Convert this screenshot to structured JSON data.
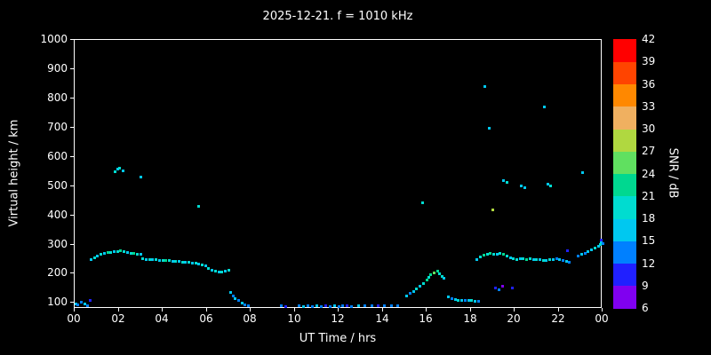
{
  "title": "2025-12-21. f = 1010 kHz",
  "chart_data": {
    "type": "scatter",
    "title": "2025-12-21. f = 1010 kHz",
    "xlabel": "UT Time / hrs",
    "ylabel": "Virtual height / km",
    "xlim": [
      0,
      24
    ],
    "ylim": [
      80,
      1000
    ],
    "grid": false,
    "background": "#000000",
    "axis_color": "#ffffff",
    "x_tick_values": [
      0,
      2,
      4,
      6,
      8,
      10,
      12,
      14,
      16,
      18,
      20,
      22,
      24
    ],
    "x_tick_labels": [
      "00",
      "02",
      "04",
      "06",
      "08",
      "10",
      "12",
      "14",
      "16",
      "18",
      "20",
      "22",
      "00"
    ],
    "y_ticks": [
      100,
      200,
      300,
      400,
      500,
      600,
      700,
      800,
      900,
      1000
    ],
    "colorbar": {
      "label": "SNR / dB",
      "min": 6,
      "max": 42,
      "ticks": [
        6,
        9,
        12,
        15,
        18,
        21,
        24,
        27,
        30,
        33,
        36,
        39,
        42
      ],
      "bands": [
        {
          "from": 6,
          "color": "#8000f0"
        },
        {
          "from": 9,
          "color": "#2020ff"
        },
        {
          "from": 12,
          "color": "#0080ff"
        },
        {
          "from": 15,
          "color": "#00c8f0"
        },
        {
          "from": 18,
          "color": "#00dcd0"
        },
        {
          "from": 21,
          "color": "#00d890"
        },
        {
          "from": 24,
          "color": "#60e060"
        },
        {
          "from": 27,
          "color": "#b0d840"
        },
        {
          "from": 30,
          "color": "#f0b060"
        },
        {
          "from": 33,
          "color": "#ff8800"
        },
        {
          "from": 36,
          "color": "#ff4400"
        },
        {
          "from": 39,
          "color": "#ff0000"
        }
      ]
    },
    "points": [
      [
        0.05,
        98,
        15
      ],
      [
        0.15,
        93,
        12
      ],
      [
        0.3,
        103,
        12
      ],
      [
        0.45,
        96,
        15
      ],
      [
        0.6,
        90,
        12
      ],
      [
        0.7,
        108,
        9
      ],
      [
        0.75,
        248,
        15
      ],
      [
        0.9,
        254,
        18
      ],
      [
        1.05,
        260,
        15
      ],
      [
        1.2,
        266,
        18
      ],
      [
        1.35,
        270,
        15
      ],
      [
        1.5,
        272,
        21
      ],
      [
        1.65,
        274,
        18
      ],
      [
        1.8,
        276,
        15
      ],
      [
        1.95,
        277,
        18
      ],
      [
        2.1,
        278,
        21
      ],
      [
        2.25,
        275,
        18
      ],
      [
        2.4,
        272,
        15
      ],
      [
        2.55,
        270,
        18
      ],
      [
        2.7,
        269,
        21
      ],
      [
        2.85,
        268,
        18
      ],
      [
        3.0,
        266,
        15
      ],
      [
        3.1,
        252,
        18
      ],
      [
        3.25,
        250,
        15
      ],
      [
        3.4,
        249,
        18
      ],
      [
        3.55,
        248,
        15
      ],
      [
        3.7,
        247,
        18
      ],
      [
        3.85,
        246,
        15
      ],
      [
        4.0,
        246,
        18
      ],
      [
        4.15,
        245,
        21
      ],
      [
        4.3,
        244,
        18
      ],
      [
        4.45,
        243,
        15
      ],
      [
        4.6,
        242,
        18
      ],
      [
        4.75,
        241,
        15
      ],
      [
        4.9,
        240,
        18
      ],
      [
        5.05,
        239,
        15
      ],
      [
        5.2,
        238,
        18
      ],
      [
        5.35,
        237,
        15
      ],
      [
        5.5,
        236,
        18
      ],
      [
        5.65,
        233,
        15
      ],
      [
        5.8,
        230,
        18
      ],
      [
        5.95,
        226,
        15
      ],
      [
        6.1,
        218,
        18
      ],
      [
        6.25,
        212,
        15
      ],
      [
        6.4,
        209,
        18
      ],
      [
        6.55,
        207,
        15
      ],
      [
        6.7,
        206,
        18
      ],
      [
        6.85,
        208,
        15
      ],
      [
        7.0,
        211,
        18
      ],
      [
        1.85,
        548,
        18
      ],
      [
        1.95,
        558,
        15
      ],
      [
        2.05,
        562,
        18
      ],
      [
        2.2,
        552,
        15
      ],
      [
        3.0,
        532,
        15
      ],
      [
        5.65,
        432,
        18
      ],
      [
        7.1,
        135,
        15
      ],
      [
        7.2,
        125,
        12
      ],
      [
        7.3,
        115,
        15
      ],
      [
        7.45,
        108,
        12
      ],
      [
        7.6,
        100,
        15
      ],
      [
        7.75,
        95,
        12
      ],
      [
        7.9,
        91,
        12
      ],
      [
        9.4,
        90,
        12
      ],
      [
        9.6,
        88,
        9
      ],
      [
        10.2,
        90,
        12
      ],
      [
        10.4,
        88,
        15
      ],
      [
        10.6,
        91,
        12
      ],
      [
        10.8,
        88,
        12
      ],
      [
        11.0,
        90,
        15
      ],
      [
        11.2,
        88,
        12
      ],
      [
        11.4,
        91,
        9
      ],
      [
        11.6,
        88,
        12
      ],
      [
        11.8,
        90,
        15
      ],
      [
        12.0,
        88,
        12
      ],
      [
        12.2,
        90,
        12
      ],
      [
        12.4,
        92,
        9
      ],
      [
        12.6,
        88,
        12
      ],
      [
        12.9,
        90,
        15
      ],
      [
        13.2,
        92,
        12
      ],
      [
        13.5,
        90,
        12
      ],
      [
        13.8,
        92,
        9
      ],
      [
        14.1,
        90,
        12
      ],
      [
        14.4,
        92,
        12
      ],
      [
        14.7,
        90,
        12
      ],
      [
        15.1,
        125,
        15
      ],
      [
        15.25,
        132,
        12
      ],
      [
        15.4,
        140,
        15
      ],
      [
        15.55,
        148,
        18
      ],
      [
        15.7,
        158,
        15
      ],
      [
        15.85,
        168,
        18
      ],
      [
        16.0,
        178,
        21
      ],
      [
        16.1,
        188,
        18
      ],
      [
        16.2,
        196,
        21
      ],
      [
        16.35,
        203,
        24
      ],
      [
        16.5,
        208,
        21
      ],
      [
        16.6,
        200,
        18
      ],
      [
        16.7,
        192,
        18
      ],
      [
        16.8,
        186,
        15
      ],
      [
        15.8,
        442,
        18
      ],
      [
        17.0,
        122,
        15
      ],
      [
        17.15,
        116,
        12
      ],
      [
        17.3,
        112,
        15
      ],
      [
        17.45,
        110,
        18
      ],
      [
        17.6,
        108,
        15
      ],
      [
        17.75,
        110,
        12
      ],
      [
        17.9,
        108,
        15
      ],
      [
        18.05,
        110,
        18
      ],
      [
        18.2,
        107,
        15
      ],
      [
        18.35,
        105,
        12
      ],
      [
        18.3,
        248,
        15
      ],
      [
        18.45,
        258,
        18
      ],
      [
        18.6,
        263,
        21
      ],
      [
        18.75,
        268,
        18
      ],
      [
        18.9,
        270,
        21
      ],
      [
        19.05,
        267,
        18
      ],
      [
        19.2,
        266,
        15
      ],
      [
        19.35,
        270,
        18
      ],
      [
        19.5,
        266,
        21
      ],
      [
        19.65,
        262,
        18
      ],
      [
        19.8,
        256,
        15
      ],
      [
        19.95,
        251,
        18
      ],
      [
        18.65,
        840,
        15
      ],
      [
        18.85,
        698,
        15
      ],
      [
        19.0,
        420,
        27
      ],
      [
        19.5,
        520,
        15
      ],
      [
        19.65,
        512,
        18
      ],
      [
        20.3,
        500,
        15
      ],
      [
        20.45,
        495,
        15
      ],
      [
        21.35,
        772,
        15
      ],
      [
        21.5,
        508,
        15
      ],
      [
        21.65,
        500,
        18
      ],
      [
        23.1,
        545,
        15
      ],
      [
        19.15,
        152,
        9
      ],
      [
        19.3,
        146,
        12
      ],
      [
        19.45,
        158,
        6
      ],
      [
        19.9,
        150,
        9
      ],
      [
        22.4,
        280,
        9
      ],
      [
        20.1,
        249,
        18
      ],
      [
        20.25,
        251,
        15
      ],
      [
        20.4,
        252,
        18
      ],
      [
        20.55,
        250,
        21
      ],
      [
        20.7,
        253,
        18
      ],
      [
        20.85,
        249,
        15
      ],
      [
        21.0,
        247,
        18
      ],
      [
        21.15,
        250,
        15
      ],
      [
        21.3,
        246,
        18
      ],
      [
        21.45,
        244,
        15
      ],
      [
        21.6,
        247,
        18
      ],
      [
        21.75,
        249,
        15
      ],
      [
        21.9,
        251,
        12
      ],
      [
        22.05,
        248,
        15
      ],
      [
        22.2,
        244,
        12
      ],
      [
        22.35,
        241,
        15
      ],
      [
        22.5,
        238,
        12
      ],
      [
        22.9,
        262,
        12
      ],
      [
        23.05,
        266,
        15
      ],
      [
        23.2,
        270,
        12
      ],
      [
        23.35,
        276,
        15
      ],
      [
        23.5,
        282,
        15
      ],
      [
        23.65,
        288,
        18
      ],
      [
        23.8,
        294,
        15
      ],
      [
        23.9,
        300,
        18
      ],
      [
        23.95,
        308,
        15
      ],
      [
        24.0,
        302,
        12
      ],
      [
        23.95,
        315,
        9
      ]
    ]
  }
}
